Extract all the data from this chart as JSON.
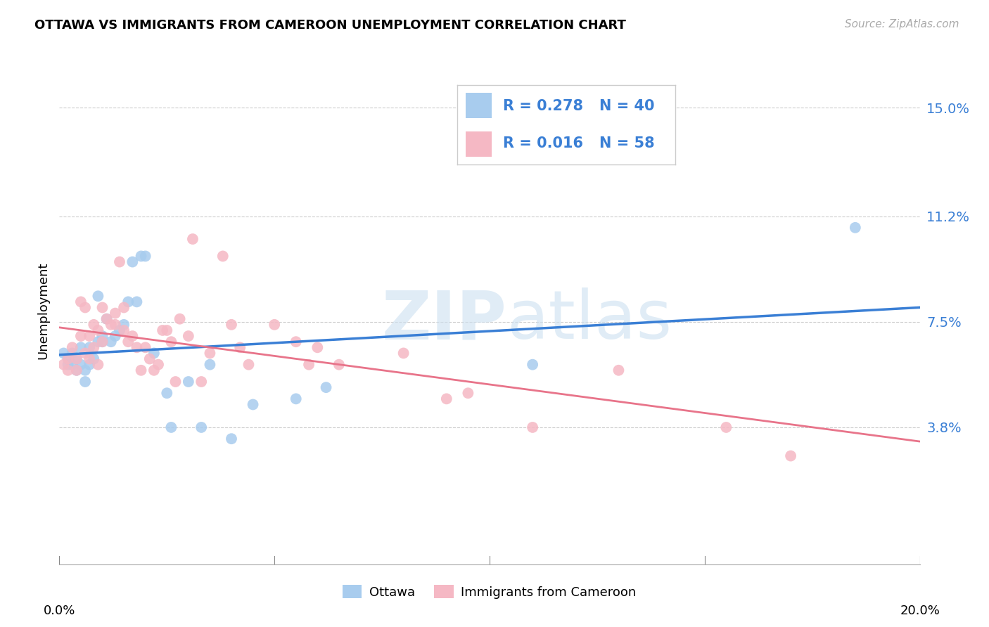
{
  "title": "OTTAWA VS IMMIGRANTS FROM CAMEROON UNEMPLOYMENT CORRELATION CHART",
  "source": "Source: ZipAtlas.com",
  "ylabel": "Unemployment",
  "ytick_labels": [
    "15.0%",
    "11.2%",
    "7.5%",
    "3.8%"
  ],
  "ytick_values": [
    0.15,
    0.112,
    0.075,
    0.038
  ],
  "xlim": [
    0.0,
    0.2
  ],
  "ylim": [
    -0.01,
    0.168
  ],
  "watermark": "ZIPatlas",
  "legend_ottawa_R": "R = 0.278",
  "legend_ottawa_N": "N = 40",
  "legend_camr_R": "R = 0.016",
  "legend_camr_N": "N = 58",
  "ottawa_color": "#a8ccee",
  "cameroon_color": "#f5b8c4",
  "ottawa_line_color": "#3a7fd5",
  "cameroon_line_color": "#e8748a",
  "ottawa_points": [
    [
      0.001,
      0.064
    ],
    [
      0.002,
      0.062
    ],
    [
      0.002,
      0.06
    ],
    [
      0.003,
      0.06
    ],
    [
      0.003,
      0.064
    ],
    [
      0.004,
      0.058
    ],
    [
      0.004,
      0.062
    ],
    [
      0.005,
      0.066
    ],
    [
      0.005,
      0.06
    ],
    [
      0.006,
      0.058
    ],
    [
      0.006,
      0.054
    ],
    [
      0.007,
      0.066
    ],
    [
      0.007,
      0.06
    ],
    [
      0.008,
      0.062
    ],
    [
      0.009,
      0.068
    ],
    [
      0.009,
      0.084
    ],
    [
      0.01,
      0.068
    ],
    [
      0.01,
      0.07
    ],
    [
      0.011,
      0.076
    ],
    [
      0.012,
      0.068
    ],
    [
      0.013,
      0.07
    ],
    [
      0.014,
      0.072
    ],
    [
      0.015,
      0.074
    ],
    [
      0.016,
      0.082
    ],
    [
      0.017,
      0.096
    ],
    [
      0.018,
      0.082
    ],
    [
      0.019,
      0.098
    ],
    [
      0.02,
      0.098
    ],
    [
      0.022,
      0.064
    ],
    [
      0.025,
      0.05
    ],
    [
      0.026,
      0.038
    ],
    [
      0.03,
      0.054
    ],
    [
      0.033,
      0.038
    ],
    [
      0.035,
      0.06
    ],
    [
      0.04,
      0.034
    ],
    [
      0.045,
      0.046
    ],
    [
      0.055,
      0.048
    ],
    [
      0.062,
      0.052
    ],
    [
      0.11,
      0.06
    ],
    [
      0.185,
      0.108
    ]
  ],
  "cameroon_points": [
    [
      0.001,
      0.06
    ],
    [
      0.002,
      0.062
    ],
    [
      0.002,
      0.058
    ],
    [
      0.003,
      0.066
    ],
    [
      0.004,
      0.062
    ],
    [
      0.004,
      0.058
    ],
    [
      0.005,
      0.082
    ],
    [
      0.005,
      0.07
    ],
    [
      0.006,
      0.08
    ],
    [
      0.006,
      0.064
    ],
    [
      0.007,
      0.07
    ],
    [
      0.007,
      0.062
    ],
    [
      0.008,
      0.074
    ],
    [
      0.008,
      0.066
    ],
    [
      0.009,
      0.06
    ],
    [
      0.009,
      0.072
    ],
    [
      0.01,
      0.068
    ],
    [
      0.01,
      0.08
    ],
    [
      0.011,
      0.076
    ],
    [
      0.012,
      0.074
    ],
    [
      0.013,
      0.074
    ],
    [
      0.013,
      0.078
    ],
    [
      0.014,
      0.096
    ],
    [
      0.015,
      0.072
    ],
    [
      0.015,
      0.08
    ],
    [
      0.016,
      0.068
    ],
    [
      0.017,
      0.07
    ],
    [
      0.018,
      0.066
    ],
    [
      0.019,
      0.058
    ],
    [
      0.02,
      0.066
    ],
    [
      0.021,
      0.062
    ],
    [
      0.022,
      0.058
    ],
    [
      0.023,
      0.06
    ],
    [
      0.024,
      0.072
    ],
    [
      0.025,
      0.072
    ],
    [
      0.026,
      0.068
    ],
    [
      0.027,
      0.054
    ],
    [
      0.028,
      0.076
    ],
    [
      0.03,
      0.07
    ],
    [
      0.031,
      0.104
    ],
    [
      0.033,
      0.054
    ],
    [
      0.035,
      0.064
    ],
    [
      0.038,
      0.098
    ],
    [
      0.04,
      0.074
    ],
    [
      0.042,
      0.066
    ],
    [
      0.044,
      0.06
    ],
    [
      0.05,
      0.074
    ],
    [
      0.055,
      0.068
    ],
    [
      0.058,
      0.06
    ],
    [
      0.06,
      0.066
    ],
    [
      0.065,
      0.06
    ],
    [
      0.08,
      0.064
    ],
    [
      0.09,
      0.048
    ],
    [
      0.095,
      0.05
    ],
    [
      0.11,
      0.038
    ],
    [
      0.13,
      0.058
    ],
    [
      0.155,
      0.038
    ],
    [
      0.17,
      0.028
    ]
  ]
}
